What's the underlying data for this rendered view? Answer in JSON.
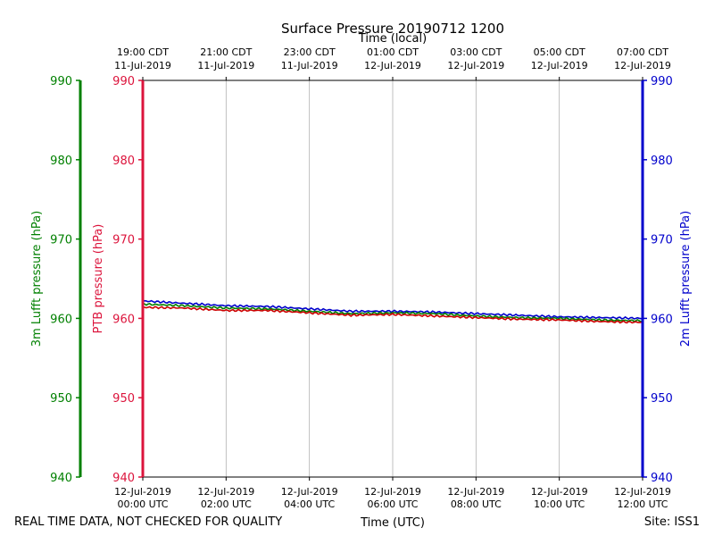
{
  "chart_data": {
    "type": "line",
    "title": "Surface Pressure 20190712 1200",
    "xlabel_top": "Time (local)",
    "xlabel_bottom": "Time (UTC)",
    "ylabel_left_outer": "3m Lufft pressure (hPa)",
    "ylabel_left_inner": "PTB pressure (hPa)",
    "ylabel_right": "2m Lufft pressure (hPa)",
    "ylim": [
      940,
      990
    ],
    "yticks": [
      940,
      950,
      960,
      970,
      980,
      990
    ],
    "xlim": [
      0,
      12
    ],
    "grid": "vertical only",
    "x_unit": "hours since 12-Jul-2019 00:00 UTC",
    "bottom_ticks": [
      {
        "x": 0,
        "line1": "12-Jul-2019",
        "line2": "00:00 UTC"
      },
      {
        "x": 2,
        "line1": "12-Jul-2019",
        "line2": "02:00 UTC"
      },
      {
        "x": 4,
        "line1": "12-Jul-2019",
        "line2": "04:00 UTC"
      },
      {
        "x": 6,
        "line1": "12-Jul-2019",
        "line2": "06:00 UTC"
      },
      {
        "x": 8,
        "line1": "12-Jul-2019",
        "line2": "08:00 UTC"
      },
      {
        "x": 10,
        "line1": "12-Jul-2019",
        "line2": "10:00 UTC"
      },
      {
        "x": 12,
        "line1": "12-Jul-2019",
        "line2": "12:00 UTC"
      }
    ],
    "top_ticks": [
      {
        "x": 0,
        "line1": "19:00 CDT",
        "line2": "11-Jul-2019"
      },
      {
        "x": 2,
        "line1": "21:00 CDT",
        "line2": "11-Jul-2019"
      },
      {
        "x": 4,
        "line1": "23:00 CDT",
        "line2": "11-Jul-2019"
      },
      {
        "x": 6,
        "line1": "01:00 CDT",
        "line2": "12-Jul-2019"
      },
      {
        "x": 8,
        "line1": "03:00 CDT",
        "line2": "12-Jul-2019"
      },
      {
        "x": 10,
        "line1": "05:00 CDT",
        "line2": "12-Jul-2019"
      },
      {
        "x": 12,
        "line1": "07:00 CDT",
        "line2": "12-Jul-2019"
      }
    ],
    "series": [
      {
        "name": "2m Lufft pressure (hPa)",
        "color": "#0000cc",
        "x": [
          0,
          1,
          2,
          3,
          4,
          5,
          6,
          7,
          8,
          9,
          10,
          11,
          12
        ],
        "values": [
          962.2,
          961.9,
          961.6,
          961.5,
          961.2,
          960.9,
          960.9,
          960.8,
          960.6,
          960.4,
          960.2,
          960.1,
          960.0
        ]
      },
      {
        "name": "3m Lufft pressure (hPa)",
        "color": "#008000",
        "x": [
          0,
          1,
          2,
          3,
          4,
          5,
          6,
          7,
          8,
          9,
          10,
          11,
          12
        ],
        "values": [
          961.8,
          961.6,
          961.3,
          961.2,
          960.9,
          960.6,
          960.7,
          960.6,
          960.3,
          960.1,
          960.0,
          959.8,
          959.7
        ]
      },
      {
        "name": "PTB pressure (hPa)",
        "color": "#cc0000",
        "x": [
          0,
          1,
          2,
          3,
          4,
          5,
          6,
          7,
          8,
          9,
          10,
          11,
          12
        ],
        "values": [
          961.4,
          961.3,
          961.0,
          961.0,
          960.7,
          960.4,
          960.5,
          960.3,
          960.1,
          959.9,
          959.8,
          959.6,
          959.5
        ]
      }
    ]
  },
  "axis_colors": {
    "left_outer": "#008000",
    "left_inner": "#dc143c",
    "right": "#0000cc"
  },
  "footer": {
    "left_note": "REAL TIME DATA, NOT CHECKED FOR QUALITY",
    "site": "Site: ISS1"
  }
}
